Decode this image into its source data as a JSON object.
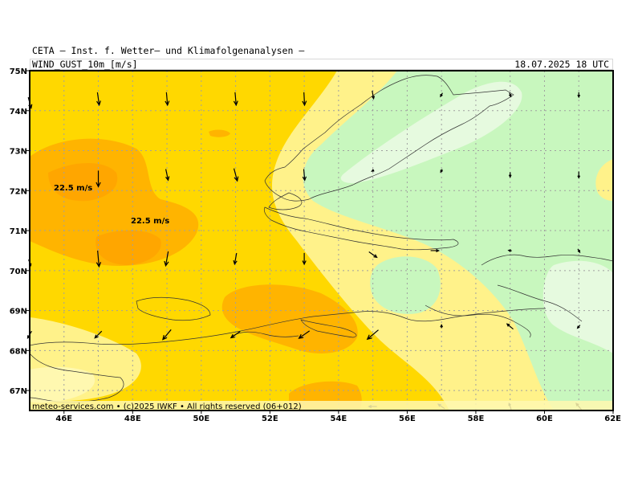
{
  "header": {
    "title": "CETA — Inst. f. Wetter— und Klimafolgenanalysen —",
    "variable": "WIND_GUST_10m_[m/s]",
    "datetime": "18.07.2025 18 UTC"
  },
  "footer": "meteo-services.com • (c)2025 IWKF • All rights reserved (06+012)",
  "axes": {
    "lat_labels": [
      "75N",
      "74N",
      "73N",
      "72N",
      "71N",
      "70N",
      "69N",
      "68N",
      "67N"
    ],
    "lon_labels": [
      "46E",
      "48E",
      "50E",
      "52E",
      "54E",
      "56E",
      "58E",
      "60E",
      "62E"
    ]
  },
  "isolines": [
    {
      "label": "22.5 m/s"
    },
    {
      "label": "22.5 m/s"
    }
  ],
  "colors": {
    "band_light_green": "#e6fadf",
    "band_green": "#c8f7be",
    "band_pale_yellow": "#fff28a",
    "band_yellow": "#ffd800",
    "band_orange": "#ffb400",
    "band_dark_orange": "#ff9a00",
    "grid": "#a0a0a0",
    "coast": "#333333"
  }
}
